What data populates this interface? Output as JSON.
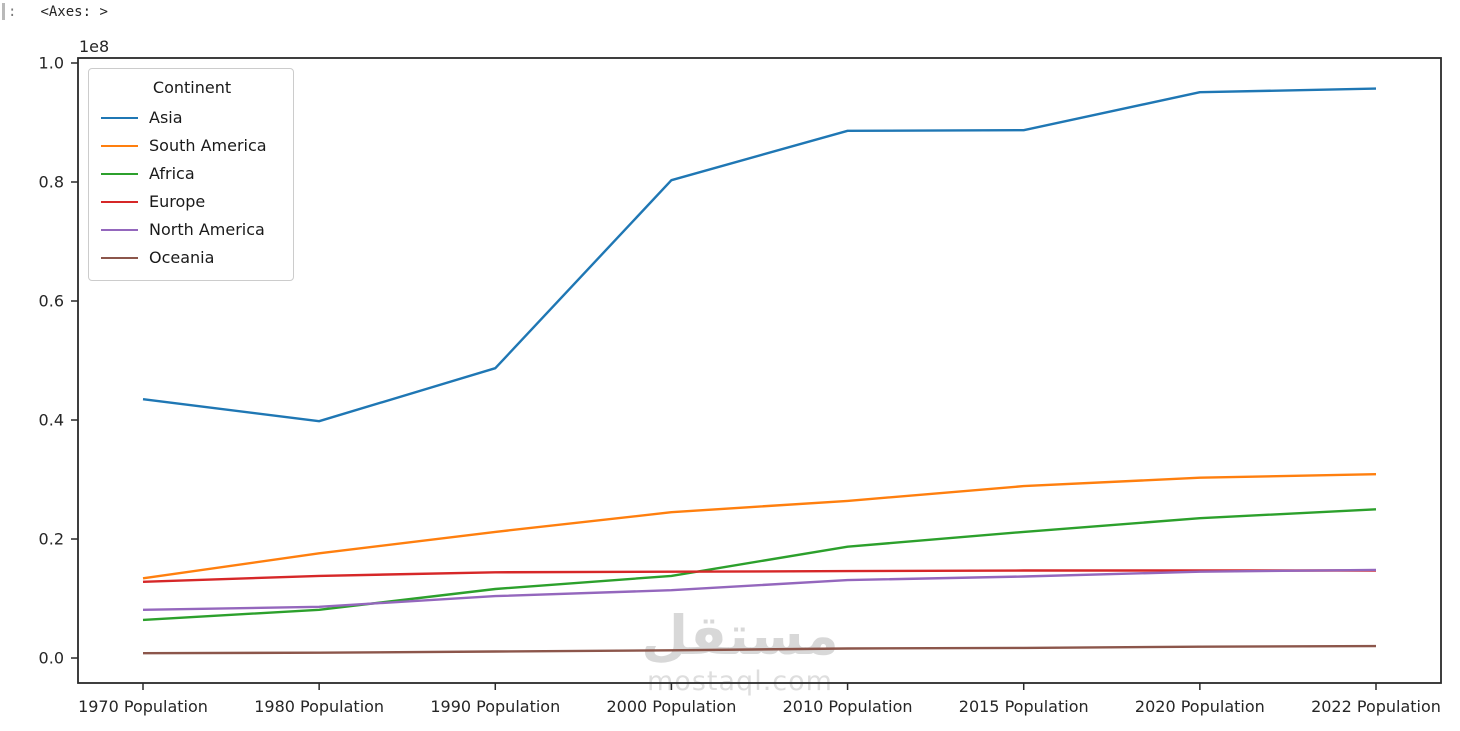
{
  "output_prompt": {
    "colon": ":",
    "value": "<Axes: >"
  },
  "watermark": {
    "logo_text": "مستقل",
    "url_text": "mostaql.com"
  },
  "chart_data": {
    "type": "line",
    "title": "",
    "xlabel": "",
    "ylabel": "",
    "legend_title": "Continent",
    "legend_position": "upper left",
    "grid": false,
    "y_offset_label": "1e8",
    "y_unit": "1e8 (values are population × 100,000,000)",
    "y_ticks": [
      "0.0",
      "0.2",
      "0.4",
      "0.6",
      "0.8",
      "1.0"
    ],
    "y_tick_values": [
      0.0,
      0.2,
      0.4,
      0.6,
      0.8,
      1.0
    ],
    "ylim": [
      -0.042,
      1.0084
    ],
    "categories": [
      "1970 Population",
      "1980 Population",
      "1990 Population",
      "2000 Population",
      "2010 Population",
      "2015 Population",
      "2020 Population",
      "2022 Population"
    ],
    "series": [
      {
        "name": "Asia",
        "color": "#1f77b4",
        "values": [
          0.435,
          0.398,
          0.487,
          0.803,
          0.886,
          0.887,
          0.951,
          0.957
        ]
      },
      {
        "name": "South America",
        "color": "#ff7f0e",
        "values": [
          0.134,
          0.176,
          0.212,
          0.245,
          0.264,
          0.289,
          0.303,
          0.309
        ]
      },
      {
        "name": "Africa",
        "color": "#2ca02c",
        "values": [
          0.064,
          0.081,
          0.116,
          0.138,
          0.187,
          0.212,
          0.235,
          0.25
        ]
      },
      {
        "name": "Europe",
        "color": "#d62728",
        "values": [
          0.128,
          0.138,
          0.144,
          0.145,
          0.146,
          0.147,
          0.147,
          0.147
        ]
      },
      {
        "name": "North America",
        "color": "#9467bd",
        "values": [
          0.081,
          0.086,
          0.104,
          0.114,
          0.131,
          0.137,
          0.145,
          0.148
        ]
      },
      {
        "name": "Oceania",
        "color": "#8c564b",
        "values": [
          0.008,
          0.009,
          0.011,
          0.013,
          0.016,
          0.017,
          0.019,
          0.02
        ]
      }
    ]
  }
}
